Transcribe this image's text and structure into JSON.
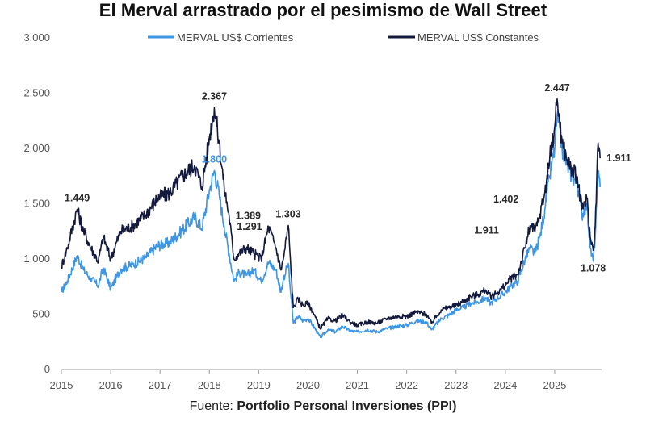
{
  "chart_data": {
    "type": "line",
    "title": "El Merval arrastrado por el pesimismo de Wall Street",
    "source_prefix": "Fuente:",
    "source_name": "Portfolio Personal Inversiones (PPI)",
    "xlabel": "",
    "ylabel": "",
    "ylim": [
      0,
      3000
    ],
    "xlim": [
      2015.0,
      2025.95
    ],
    "y_ticks": [
      0,
      500,
      1000,
      1500,
      2000,
      2500,
      3000
    ],
    "y_tick_labels": [
      "0",
      "500",
      "1.000",
      "1.500",
      "2.000",
      "2.500",
      "3.000"
    ],
    "x_ticks": [
      2015,
      2016,
      2017,
      2018,
      2019,
      2020,
      2021,
      2022,
      2023,
      2024,
      2025
    ],
    "x_tick_labels": [
      "2015",
      "2016",
      "2017",
      "2018",
      "2019",
      "2020",
      "2021",
      "2022",
      "2023",
      "2024",
      "2025"
    ],
    "legend_position": "top",
    "series": [
      {
        "name": "MERVAL US$ Corrientes",
        "color": "#3d95e3",
        "x": [
          2015.0,
          2015.12,
          2015.32,
          2015.45,
          2015.6,
          2015.75,
          2015.85,
          2016.0,
          2016.2,
          2016.45,
          2016.7,
          2016.95,
          2017.2,
          2017.45,
          2017.7,
          2017.85,
          2018.0,
          2018.1,
          2018.2,
          2018.3,
          2018.4,
          2018.5,
          2018.6,
          2018.75,
          2018.9,
          2019.05,
          2019.2,
          2019.35,
          2019.45,
          2019.5,
          2019.6,
          2019.62,
          2019.7,
          2019.8,
          2019.9,
          2020.0,
          2020.1,
          2020.25,
          2020.4,
          2020.55,
          2020.7,
          2020.85,
          2021.0,
          2021.2,
          2021.4,
          2021.6,
          2021.8,
          2022.0,
          2022.2,
          2022.4,
          2022.5,
          2022.7,
          2022.85,
          2023.0,
          2023.15,
          2023.3,
          2023.45,
          2023.6,
          2023.7,
          2023.85,
          2024.0,
          2024.1,
          2024.25,
          2024.4,
          2024.5,
          2024.6,
          2024.7,
          2024.8,
          2024.9,
          2025.0,
          2025.05,
          2025.15,
          2025.25,
          2025.35,
          2025.45,
          2025.55,
          2025.65,
          2025.72,
          2025.78,
          2025.82,
          2025.85,
          2025.88,
          2025.92
        ],
        "values": [
          700,
          800,
          1030,
          900,
          820,
          760,
          920,
          730,
          910,
          950,
          1010,
          1120,
          1150,
          1260,
          1380,
          1280,
          1620,
          1800,
          1580,
          1300,
          1050,
          800,
          880,
          850,
          900,
          800,
          970,
          900,
          700,
          820,
          960,
          830,
          420,
          480,
          440,
          460,
          400,
          290,
          360,
          340,
          390,
          350,
          340,
          360,
          340,
          370,
          390,
          400,
          440,
          430,
          360,
          460,
          490,
          540,
          560,
          600,
          610,
          650,
          600,
          650,
          700,
          750,
          800,
          1000,
          1100,
          1050,
          1200,
          1450,
          1750,
          2000,
          2300,
          2000,
          1850,
          1750,
          1700,
          1400,
          1500,
          1100,
          980,
          1200,
          1500,
          1750,
          1650
        ]
      },
      {
        "name": "MERVAL US$ Constantes",
        "color": "#141a3d",
        "x": [
          2015.0,
          2015.12,
          2015.32,
          2015.45,
          2015.6,
          2015.75,
          2015.85,
          2016.0,
          2016.2,
          2016.45,
          2016.7,
          2016.95,
          2017.2,
          2017.45,
          2017.7,
          2017.85,
          2018.0,
          2018.1,
          2018.2,
          2018.3,
          2018.4,
          2018.5,
          2018.6,
          2018.75,
          2018.9,
          2019.05,
          2019.2,
          2019.35,
          2019.45,
          2019.5,
          2019.6,
          2019.62,
          2019.7,
          2019.8,
          2019.9,
          2020.0,
          2020.1,
          2020.25,
          2020.4,
          2020.55,
          2020.7,
          2020.85,
          2021.0,
          2021.2,
          2021.4,
          2021.6,
          2021.8,
          2022.0,
          2022.2,
          2022.4,
          2022.5,
          2022.7,
          2022.85,
          2023.0,
          2023.15,
          2023.3,
          2023.45,
          2023.6,
          2023.7,
          2023.85,
          2024.0,
          2024.1,
          2024.25,
          2024.4,
          2024.5,
          2024.6,
          2024.7,
          2024.8,
          2024.9,
          2025.0,
          2025.05,
          2025.15,
          2025.25,
          2025.35,
          2025.45,
          2025.55,
          2025.65,
          2025.72,
          2025.78,
          2025.82,
          2025.85,
          2025.88,
          2025.92
        ],
        "values": [
          930,
          1100,
          1449,
          1250,
          1100,
          980,
          1200,
          1000,
          1250,
          1300,
          1400,
          1550,
          1600,
          1750,
          1850,
          1650,
          2100,
          2367,
          2050,
          1650,
          1389,
          1000,
          1050,
          1100,
          1050,
          1000,
          1291,
          1100,
          900,
          1000,
          1303,
          1150,
          560,
          640,
          580,
          600,
          520,
          370,
          460,
          440,
          490,
          430,
          400,
          430,
          420,
          460,
          480,
          480,
          520,
          500,
          420,
          540,
          560,
          580,
          620,
          660,
          680,
          720,
          660,
          700,
          760,
          820,
          860,
          1100,
          1300,
          1250,
          1402,
          1600,
          1911,
          2200,
          2447,
          2050,
          1900,
          1800,
          1750,
          1450,
          1550,
          1200,
          1078,
          1300,
          1700,
          2050,
          1911
        ]
      }
    ],
    "annotations": [
      {
        "text": "1.449",
        "x": 2015.32,
        "y": 1449,
        "series": "MERVAL US$ Constantes",
        "position": "above"
      },
      {
        "text": "2.367",
        "x": 2018.1,
        "y": 2367,
        "series": "MERVAL US$ Constantes",
        "position": "above"
      },
      {
        "text": "1.800",
        "x": 2018.1,
        "y": 1800,
        "series": "MERVAL US$ Corrientes",
        "position": "above"
      },
      {
        "text": "1.389",
        "x": 2018.4,
        "y": 1389,
        "series": "MERVAL US$ Constantes",
        "position": "right"
      },
      {
        "text": "1.291",
        "x": 2019.2,
        "y": 1291,
        "series": "MERVAL US$ Constantes",
        "position": "left"
      },
      {
        "text": "1.303",
        "x": 2019.6,
        "y": 1303,
        "series": "MERVAL US$ Constantes",
        "position": "above"
      },
      {
        "text": "1.911",
        "x": 2024.0,
        "y": 1260,
        "series": "MERVAL US$ Constantes",
        "position": "left"
      },
      {
        "text": "1.402",
        "x": 2024.4,
        "y": 1540,
        "series": "MERVAL US$ Constantes",
        "position": "left"
      },
      {
        "text": "2.447",
        "x": 2025.05,
        "y": 2447,
        "series": "MERVAL US$ Constantes",
        "position": "above"
      },
      {
        "text": "1.078",
        "x": 2025.78,
        "y": 1078,
        "series": "MERVAL US$ Constantes",
        "position": "below"
      },
      {
        "text": "1.911",
        "x": 2025.92,
        "y": 1911,
        "series": "MERVAL US$ Constantes",
        "position": "right"
      }
    ]
  }
}
